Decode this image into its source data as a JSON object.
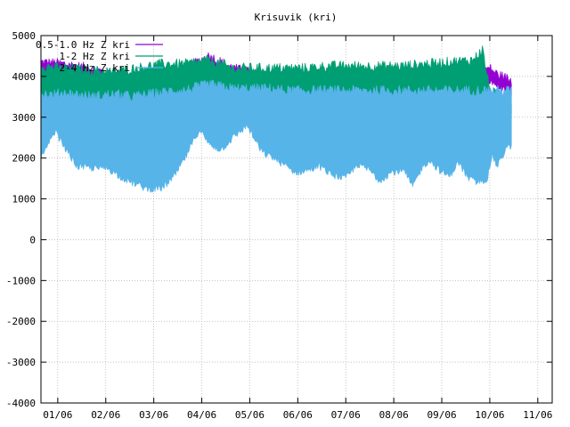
{
  "chart_data": {
    "type": "area",
    "title": "Krisuvik (kri)",
    "xlabel": "",
    "ylabel": "",
    "ylim": [
      -4000,
      5000
    ],
    "yticks": [
      5000,
      4000,
      3000,
      2000,
      1000,
      0,
      -1000,
      -2000,
      -3000,
      -4000
    ],
    "xlim": [
      0,
      10.65
    ],
    "xticks": [
      {
        "x": 0.35,
        "label": "01/06"
      },
      {
        "x": 1.35,
        "label": "02/06"
      },
      {
        "x": 2.35,
        "label": "03/06"
      },
      {
        "x": 3.35,
        "label": "04/06"
      },
      {
        "x": 4.35,
        "label": "05/06"
      },
      {
        "x": 5.35,
        "label": "06/06"
      },
      {
        "x": 6.35,
        "label": "07/06"
      },
      {
        "x": 7.35,
        "label": "08/06"
      },
      {
        "x": 8.35,
        "label": "09/06"
      },
      {
        "x": 9.35,
        "label": "10/06"
      },
      {
        "x": 10.35,
        "label": "11/06"
      }
    ],
    "grid": true,
    "legend_position": "top-left",
    "x_end": 9.8,
    "series": [
      {
        "name": "0.5-1.0 Hz Z kri",
        "color": "#9400d3",
        "x": [
          0,
          0.5,
          1.0,
          1.5,
          2.0,
          2.5,
          3.0,
          3.5,
          4.0,
          4.5,
          5.0,
          5.5,
          6.0,
          6.5,
          7.0,
          7.5,
          8.0,
          8.5,
          9.0,
          9.2,
          9.35,
          9.5,
          9.8
        ],
        "high": [
          4300,
          4250,
          4150,
          4000,
          3950,
          4000,
          4150,
          4450,
          4150,
          4000,
          3950,
          3900,
          3950,
          3950,
          3950,
          3950,
          4000,
          4000,
          4050,
          4100,
          4150,
          4000,
          3850
        ],
        "low": [
          3300,
          3450,
          3450,
          3300,
          3250,
          3300,
          3400,
          3600,
          3500,
          3400,
          3400,
          3350,
          3350,
          3350,
          3350,
          3300,
          3350,
          3400,
          3400,
          3400,
          3900,
          3750,
          3600
        ]
      },
      {
        "name": "1-2 Hz Z kri",
        "color": "#009e73",
        "x": [
          0,
          0.5,
          1.0,
          1.5,
          2.0,
          2.5,
          3.0,
          3.5,
          4.0,
          4.5,
          5.0,
          5.5,
          6.0,
          6.5,
          7.0,
          7.5,
          8.0,
          8.5,
          9.0,
          9.2,
          9.35,
          9.5,
          9.8
        ],
        "high": [
          4200,
          4150,
          4100,
          4050,
          4150,
          4250,
          4250,
          4350,
          4150,
          4150,
          4150,
          4150,
          4200,
          4200,
          4200,
          4200,
          4250,
          4300,
          4350,
          4600,
          3600,
          3500,
          3400
        ],
        "low": [
          3250,
          3400,
          3400,
          3250,
          3200,
          3250,
          3350,
          3550,
          3450,
          3350,
          3350,
          3300,
          3300,
          3300,
          3300,
          3250,
          3300,
          3350,
          3350,
          3300,
          3000,
          3100,
          3100
        ]
      },
      {
        "name": "2-4 Hz Z kri",
        "color": "#56b4e9",
        "x": [
          0,
          0.15,
          0.3,
          0.45,
          0.75,
          1.1,
          1.4,
          1.65,
          1.9,
          2.2,
          2.5,
          2.75,
          3.0,
          3.3,
          3.5,
          3.75,
          4.0,
          4.3,
          4.45,
          4.6,
          4.85,
          5.1,
          5.3,
          5.55,
          5.8,
          6.05,
          6.35,
          6.6,
          6.85,
          7.05,
          7.3,
          7.55,
          7.75,
          7.95,
          8.1,
          8.3,
          8.5,
          8.7,
          8.9,
          9.1,
          9.3,
          9.4,
          9.5,
          9.6,
          9.7,
          9.8
        ],
        "high": [
          3550,
          3500,
          3500,
          3550,
          3500,
          3450,
          3500,
          3500,
          3450,
          3500,
          3550,
          3600,
          3600,
          3700,
          3750,
          3700,
          3650,
          3650,
          3650,
          3650,
          3650,
          3600,
          3600,
          3600,
          3600,
          3600,
          3600,
          3600,
          3600,
          3600,
          3600,
          3600,
          3600,
          3600,
          3600,
          3600,
          3600,
          3600,
          3600,
          3600,
          3600,
          3600,
          3600,
          3600,
          3600,
          3600
        ],
        "low": [
          2000,
          2300,
          2650,
          2350,
          1800,
          1750,
          1750,
          1550,
          1400,
          1250,
          1250,
          1500,
          2000,
          2700,
          2350,
          2200,
          2500,
          2800,
          2450,
          2150,
          2000,
          1800,
          1650,
          1700,
          1800,
          1600,
          1500,
          1850,
          1700,
          1450,
          1650,
          1700,
          1300,
          1800,
          1950,
          1700,
          1550,
          1900,
          1500,
          1400,
          1500,
          2100,
          1800,
          2000,
          2300,
          2250
        ]
      }
    ]
  }
}
